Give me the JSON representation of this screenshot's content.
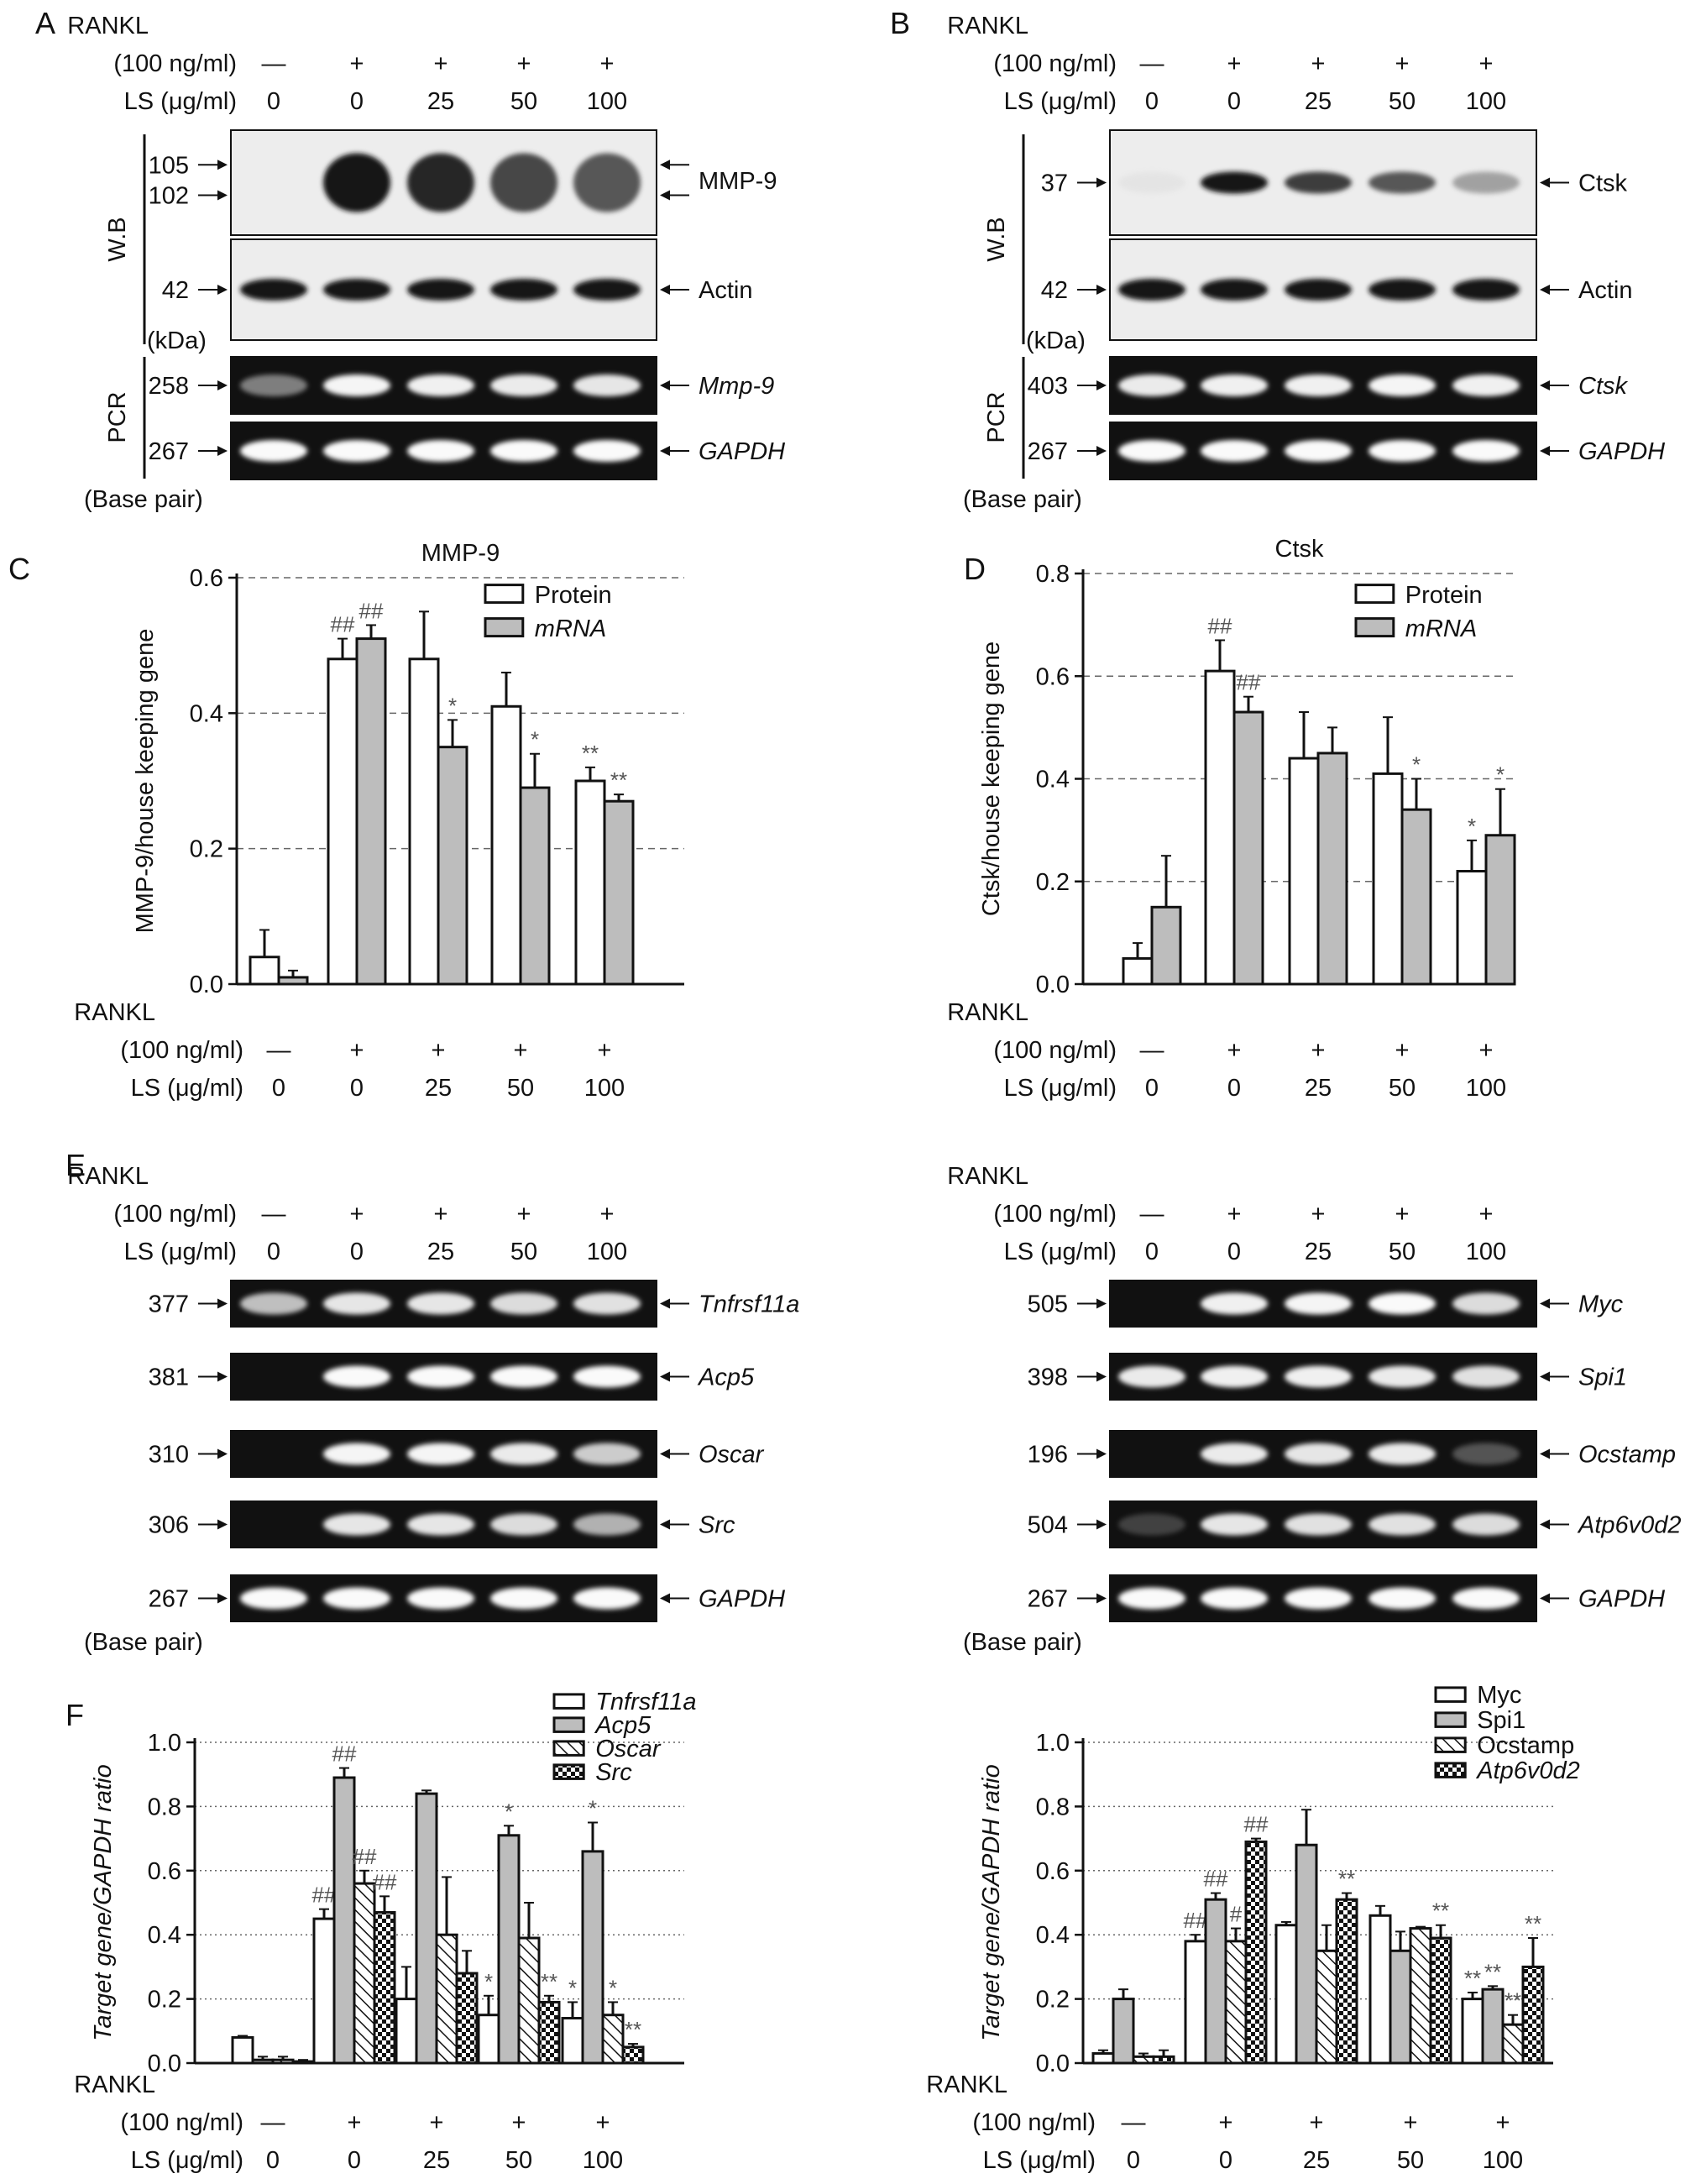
{
  "panel_letters": [
    "A",
    "B",
    "C",
    "D",
    "E",
    "F"
  ],
  "conditions": {
    "rankl_label": "RANKL",
    "rankl_conc": "(100 ng/ml)",
    "ls_label": "LS (μg/ml)",
    "rankl_signs": [
      "—",
      "+",
      "+",
      "+",
      "+"
    ],
    "ls_values": [
      "0",
      "0",
      "25",
      "50",
      "100"
    ]
  },
  "blot_labels": {
    "wb": "W.B",
    "pcr": "PCR",
    "kda": "(kDa)",
    "base_pair": "(Base pair)"
  },
  "panel_A": {
    "bands": [
      {
        "target": "MMP-9",
        "italic": false,
        "sizes": [
          "105",
          "102"
        ],
        "type": "wb"
      },
      {
        "target": "Actin",
        "italic": false,
        "sizes": [
          "42"
        ],
        "type": "wb"
      },
      {
        "target": "Mmp-9",
        "italic": true,
        "sizes": [
          "258"
        ],
        "type": "pcr"
      },
      {
        "target": "GAPDH",
        "italic": true,
        "sizes": [
          "267"
        ],
        "type": "pcr"
      }
    ]
  },
  "panel_C": {
    "bands": [
      {
        "target": "Ctsk",
        "italic": false,
        "sizes": [
          "37"
        ],
        "type": "wb"
      },
      {
        "target": "Actin",
        "italic": false,
        "sizes": [
          "42"
        ],
        "type": "wb"
      },
      {
        "target": "Ctsk",
        "italic": true,
        "sizes": [
          "403"
        ],
        "type": "pcr"
      },
      {
        "target": "GAPDH",
        "italic": true,
        "sizes": [
          "267"
        ],
        "type": "pcr"
      }
    ]
  },
  "panel_E_left": {
    "bands": [
      {
        "target": "Tnfrsf11a",
        "italic": true,
        "sizes": [
          "377"
        ]
      },
      {
        "target": "Acp5",
        "italic": true,
        "sizes": [
          "381"
        ]
      },
      {
        "target": "Oscar",
        "italic": true,
        "sizes": [
          "310"
        ]
      },
      {
        "target": "Src",
        "italic": true,
        "sizes": [
          "306"
        ]
      },
      {
        "target": "GAPDH",
        "italic": true,
        "sizes": [
          "267"
        ]
      }
    ]
  },
  "panel_E_right": {
    "bands": [
      {
        "target": "Myc",
        "italic": true,
        "sizes": [
          "505"
        ]
      },
      {
        "target": "Spi1",
        "italic": true,
        "sizes": [
          "398"
        ]
      },
      {
        "target": "Ocstamp",
        "italic": true,
        "sizes": [
          "196"
        ]
      },
      {
        "target": "Atp6v0d2",
        "italic": true,
        "sizes": [
          "504"
        ]
      },
      {
        "target": "GAPDH",
        "italic": true,
        "sizes": [
          "267"
        ]
      }
    ]
  },
  "chart_data": [
    {
      "id": "B",
      "type": "bar",
      "title": "MMP-9",
      "ylabel": "MMP-9/house keeping gene",
      "ylim": [
        0,
        0.6
      ],
      "yticks": [
        "0.0",
        "0.2",
        "0.4",
        "0.6"
      ],
      "grid": "dashed-horizontal",
      "legend_position": "top-right",
      "series": [
        {
          "name": "Protein",
          "fill": "white",
          "values": [
            0.04,
            0.48,
            0.48,
            0.41,
            0.3
          ],
          "errors": [
            0.04,
            0.03,
            0.07,
            0.05,
            0.02
          ],
          "annotations": [
            "",
            "##",
            "",
            "",
            "**"
          ]
        },
        {
          "name": "mRNA",
          "fill": "gray",
          "values": [
            0.01,
            0.51,
            0.35,
            0.29,
            0.27
          ],
          "errors": [
            0.01,
            0.02,
            0.04,
            0.05,
            0.01
          ],
          "annotations": [
            "",
            "##",
            "*",
            "*",
            "**"
          ]
        }
      ]
    },
    {
      "id": "D",
      "type": "bar",
      "title": "Ctsk",
      "ylabel": "Ctsk/house keeping gene",
      "ylim": [
        0,
        0.8
      ],
      "yticks": [
        "0.0",
        "0.2",
        "0.4",
        "0.6",
        "0.8"
      ],
      "grid": "dashed-horizontal",
      "legend_position": "top-right",
      "series": [
        {
          "name": "Protein",
          "fill": "white",
          "values": [
            0.05,
            0.61,
            0.44,
            0.41,
            0.22
          ],
          "errors": [
            0.03,
            0.06,
            0.09,
            0.11,
            0.06
          ],
          "annotations": [
            "",
            "##",
            "",
            "",
            "*"
          ]
        },
        {
          "name": "mRNA",
          "fill": "gray",
          "values": [
            0.15,
            0.53,
            0.45,
            0.34,
            0.29
          ],
          "errors": [
            0.1,
            0.03,
            0.05,
            0.06,
            0.09
          ],
          "annotations": [
            "",
            "##",
            "",
            "*",
            "*"
          ]
        }
      ]
    },
    {
      "id": "F-left",
      "type": "bar",
      "ylabel": "Target gene/GAPDH ratio",
      "ylim": [
        0,
        1.0
      ],
      "yticks": [
        "0.0",
        "0.2",
        "0.4",
        "0.6",
        "0.8",
        "1.0"
      ],
      "grid": "dotted-horizontal",
      "legend_position": "top-right",
      "series": [
        {
          "name": "Tnfrsf11a",
          "fill": "white",
          "values": [
            0.08,
            0.45,
            0.2,
            0.15,
            0.14
          ],
          "errors": [
            0.005,
            0.03,
            0.1,
            0.06,
            0.05
          ],
          "annotations": [
            "",
            "##",
            "",
            "*",
            "*"
          ]
        },
        {
          "name": "Acp5",
          "fill": "gray",
          "values": [
            0.01,
            0.89,
            0.84,
            0.71,
            0.66
          ],
          "errors": [
            0.01,
            0.03,
            0.01,
            0.03,
            0.09
          ],
          "annotations": [
            "",
            "##",
            "",
            "*",
            "*"
          ]
        },
        {
          "name": "Oscar",
          "fill": "hatch",
          "values": [
            0.01,
            0.56,
            0.4,
            0.39,
            0.15
          ],
          "errors": [
            0.01,
            0.04,
            0.18,
            0.11,
            0.04
          ],
          "annotations": [
            "",
            "##",
            "",
            "",
            "*"
          ]
        },
        {
          "name": "Src",
          "fill": "dots",
          "values": [
            0.005,
            0.47,
            0.28,
            0.19,
            0.05
          ],
          "errors": [
            0.005,
            0.05,
            0.07,
            0.02,
            0.01
          ],
          "annotations": [
            "",
            "##",
            "",
            "**",
            "**"
          ]
        }
      ]
    },
    {
      "id": "F-right",
      "type": "bar",
      "ylabel": "Target gene/GAPDH ratio",
      "ylim": [
        0,
        1.0
      ],
      "yticks": [
        "0.0",
        "0.2",
        "0.4",
        "0.6",
        "0.8",
        "1.0"
      ],
      "grid": "dotted-horizontal",
      "legend_position": "top-right",
      "series": [
        {
          "name": "Myc",
          "fill": "white",
          "values": [
            0.03,
            0.38,
            0.43,
            0.46,
            0.2
          ],
          "errors": [
            0.01,
            0.02,
            0.01,
            0.03,
            0.02
          ],
          "annotations": [
            "",
            "##",
            "",
            "",
            "**"
          ]
        },
        {
          "name": "Spi1",
          "fill": "gray",
          "values": [
            0.2,
            0.51,
            0.68,
            0.35,
            0.23
          ],
          "errors": [
            0.03,
            0.02,
            0.11,
            0.06,
            0.01
          ],
          "annotations": [
            "",
            "##",
            "",
            "",
            "**"
          ]
        },
        {
          "name": "Ocstamp",
          "fill": "hatch",
          "values": [
            0.02,
            0.38,
            0.35,
            0.42,
            0.12
          ],
          "errors": [
            0.01,
            0.04,
            0.08,
            0.005,
            0.03
          ],
          "annotations": [
            "",
            "#",
            "",
            "",
            "**"
          ]
        },
        {
          "name": "Atp6v0d2",
          "fill": "dots",
          "values": [
            0.02,
            0.69,
            0.51,
            0.39,
            0.3
          ],
          "errors": [
            0.02,
            0.01,
            0.02,
            0.04,
            0.09
          ],
          "annotations": [
            "",
            "##",
            "**",
            "**",
            "**"
          ]
        }
      ]
    }
  ]
}
